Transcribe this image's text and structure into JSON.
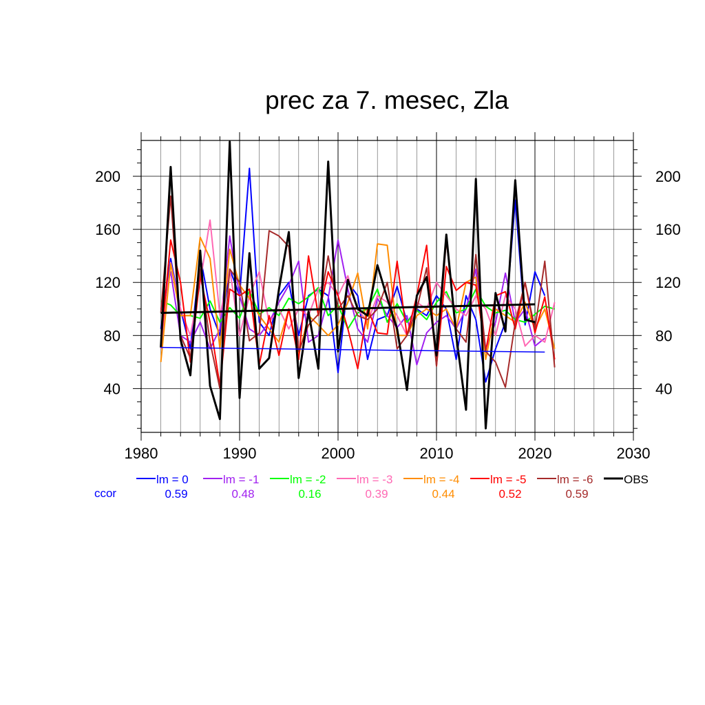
{
  "chart_data": {
    "type": "line",
    "title": "prec za 7. mesec, Zla",
    "xlabel": "",
    "ylabel": "",
    "xlim": [
      1980,
      2030
    ],
    "ylim": [
      7,
      227
    ],
    "x_ticks": [
      1980,
      1990,
      2000,
      2010,
      2020,
      2030
    ],
    "y_ticks": [
      40,
      80,
      120,
      160,
      200
    ],
    "grid": true,
    "legend_position": "bottom",
    "ccor_label": "ccor",
    "series": [
      {
        "name": "lm = 0",
        "color": "#0000ff",
        "ccor": "0.59",
        "x": [
          1982,
          1983,
          1984,
          1985,
          1986,
          1987,
          1988,
          1989,
          1990,
          1991,
          1992,
          1993,
          1994,
          1995,
          1996,
          1997,
          1998,
          1999,
          2000,
          2001,
          2002,
          2003,
          2004,
          2005,
          2006,
          2007,
          2008,
          2009,
          2010,
          2011,
          2012,
          2013,
          2014,
          2015,
          2016,
          2017,
          2018,
          2019,
          2020,
          2021
        ],
        "y": [
          85,
          138,
          100,
          70,
          140,
          100,
          80,
          130,
          110,
          206,
          90,
          80,
          110,
          120,
          80,
          110,
          115,
          110,
          52,
          120,
          110,
          62,
          92,
          95,
          117,
          90,
          100,
          95,
          110,
          100,
          62,
          110,
          92,
          45,
          70,
          90,
          182,
          88,
          128,
          110
        ],
        "trend": [
          [
            1982,
            71
          ],
          [
            2021,
            67.5
          ]
        ]
      },
      {
        "name": "lm = -1",
        "color": "#a020f0",
        "ccor": "0.48",
        "x": [
          1982,
          1983,
          1984,
          1985,
          1986,
          1987,
          1988,
          1989,
          1990,
          1991,
          1992,
          1993,
          1994,
          1995,
          1996,
          1997,
          1998,
          1999,
          2000,
          2001,
          2002,
          2003,
          2004,
          2005,
          2006,
          2007,
          2008,
          2009,
          2010,
          2011,
          2012,
          2013,
          2014,
          2015,
          2016,
          2017,
          2018,
          2019,
          2020,
          2021
        ],
        "y": [
          100,
          128,
          80,
          75,
          90,
          70,
          85,
          155,
          110,
          85,
          80,
          90,
          105,
          118,
          136,
          75,
          80,
          108,
          152,
          115,
          85,
          75,
          108,
          95,
          86,
          95,
          58,
          82,
          90,
          95,
          85,
          100,
          130,
          70,
          90,
          127,
          90,
          100,
          72,
          78
        ]
      },
      {
        "name": "lm = -2",
        "color": "#00ff00",
        "ccor": "0.16",
        "x": [
          1982,
          1983,
          1984,
          1985,
          1986,
          1987,
          1988,
          1989,
          1990,
          1991,
          1992,
          1993,
          1994,
          1995,
          1996,
          1997,
          1998,
          1999,
          2000,
          2001,
          2002,
          2003,
          2004,
          2005,
          2006,
          2007,
          2008,
          2009,
          2010,
          2011,
          2012,
          2013,
          2014,
          2015,
          2016,
          2017,
          2018,
          2019,
          2020,
          2021,
          2022
        ],
        "y": [
          106,
          103,
          95,
          95,
          93,
          106,
          90,
          101,
          93,
          114,
          96,
          101,
          95,
          108,
          104,
          109,
          116,
          95,
          103,
          85,
          97,
          100,
          115,
          90,
          104,
          90,
          99,
          92,
          105,
          113,
          97,
          100,
          115,
          102,
          97,
          99,
          92,
          90,
          96,
          102,
          100
        ]
      },
      {
        "name": "lm = -3",
        "color": "#ff69b4",
        "ccor": "0.39",
        "x": [
          1982,
          1983,
          1984,
          1985,
          1986,
          1987,
          1988,
          1989,
          1990,
          1991,
          1992,
          1993,
          1994,
          1995,
          1996,
          1997,
          1998,
          1999,
          2000,
          2001,
          2002,
          2003,
          2004,
          2005,
          2006,
          2007,
          2008,
          2009,
          2010,
          2011,
          2012,
          2013,
          2014,
          2015,
          2016,
          2017,
          2018,
          2019,
          2020,
          2021,
          2022
        ],
        "y": [
          70,
          135,
          100,
          80,
          120,
          167,
          95,
          130,
          80,
          110,
          128,
          90,
          100,
          85,
          100,
          95,
          115,
          120,
          110,
          125,
          100,
          90,
          110,
          105,
          95,
          80,
          105,
          100,
          120,
          110,
          100,
          95,
          110,
          100,
          80,
          110,
          100,
          72,
          80,
          75,
          105
        ]
      },
      {
        "name": "lm = -4",
        "color": "#ff8c00",
        "ccor": "0.44",
        "x": [
          1982,
          1983,
          1984,
          1985,
          1986,
          1987,
          1988,
          1989,
          1990,
          1991,
          1992,
          1993,
          1994,
          1995,
          1996,
          1997,
          1998,
          1999,
          2000,
          2001,
          2002,
          2003,
          2004,
          2005,
          2006,
          2007,
          2008,
          2009,
          2010,
          2011,
          2012,
          2013,
          2014,
          2015,
          2016,
          2017,
          2018,
          2019,
          2020,
          2021,
          2022
        ],
        "y": [
          60,
          134,
          95,
          95,
          154,
          138,
          70,
          145,
          118,
          108,
          95,
          85,
          75,
          100,
          65,
          95,
          88,
          80,
          88,
          105,
          127,
          85,
          149,
          148,
          80,
          80,
          95,
          100,
          95,
          100,
          85,
          120,
          124,
          62,
          100,
          95,
          90,
          105,
          85,
          100,
          70
        ]
      },
      {
        "name": "lm = -5",
        "color": "#ff0000",
        "ccor": "0.52",
        "x": [
          1982,
          1983,
          1984,
          1985,
          1986,
          1987,
          1988,
          1989,
          1990,
          1991,
          1992,
          1993,
          1994,
          1995,
          1996,
          1997,
          1998,
          1999,
          2000,
          2001,
          2002,
          2003,
          2004,
          2005,
          2006,
          2007,
          2008,
          2009,
          2010,
          2011,
          2012,
          2013,
          2014,
          2015,
          2016,
          2017,
          2018,
          2019,
          2020,
          2021,
          2022
        ],
        "y": [
          73,
          152,
          120,
          60,
          125,
          90,
          42,
          115,
          110,
          115,
          58,
          95,
          65,
          100,
          62,
          140,
          95,
          128,
          110,
          85,
          55,
          100,
          82,
          81,
          136,
          80,
          110,
          148,
          57,
          132,
          114,
          120,
          118,
          68,
          110,
          113,
          85,
          120,
          82,
          109,
          62
        ]
      },
      {
        "name": "lm = -6",
        "color": "#a52a2a",
        "ccor": "0.59",
        "x": [
          1982,
          1983,
          1984,
          1985,
          1986,
          1987,
          1988,
          1989,
          1990,
          1991,
          1992,
          1993,
          1994,
          1995,
          1996,
          1997,
          1998,
          1999,
          2000,
          2001,
          2002,
          2003,
          2004,
          2005,
          2006,
          2007,
          2008,
          2009,
          2010,
          2011,
          2012,
          2013,
          2014,
          2015,
          2016,
          2017,
          2018,
          2019,
          2020,
          2021,
          2022
        ],
        "y": [
          97,
          185,
          80,
          63,
          130,
          75,
          40,
          130,
          120,
          76,
          82,
          159,
          155,
          147,
          68,
          88,
          96,
          140,
          100,
          110,
          95,
          92,
          100,
          120,
          70,
          80,
          100,
          131,
          57,
          152,
          85,
          75,
          141,
          68,
          60,
          41,
          90,
          120,
          85,
          136,
          56
        ]
      },
      {
        "name": "OBS",
        "color": "#000000",
        "ccor": "",
        "x": [
          1982,
          1983,
          1984,
          1985,
          1986,
          1987,
          1988,
          1989,
          1990,
          1991,
          1992,
          1993,
          1994,
          1995,
          1996,
          1997,
          1998,
          1999,
          2000,
          2001,
          2002,
          2003,
          2004,
          2005,
          2006,
          2007,
          2008,
          2009,
          2010,
          2011,
          2012,
          2013,
          2014,
          2015,
          2016,
          2017,
          2018,
          2019,
          2020
        ],
        "y": [
          71,
          207,
          77,
          50,
          144,
          42,
          17,
          226,
          33,
          142,
          55,
          63,
          115,
          158,
          48,
          98,
          55,
          211,
          68,
          122,
          100,
          95,
          133,
          108,
          85,
          39,
          110,
          124,
          65,
          156,
          80,
          24,
          198,
          10,
          112,
          83,
          197,
          92,
          90
        ],
        "trend": [
          [
            1982,
            97
          ],
          [
            2020,
            103.5
          ]
        ]
      }
    ]
  }
}
